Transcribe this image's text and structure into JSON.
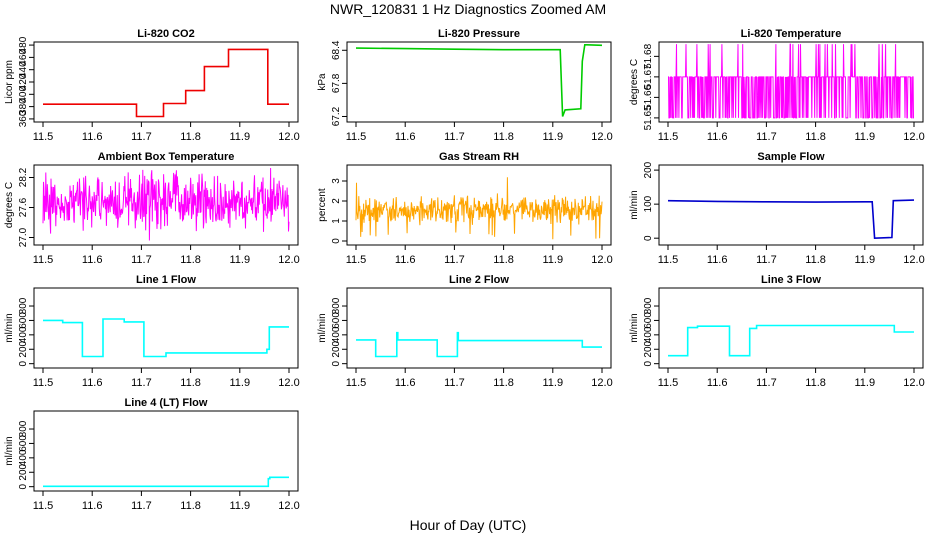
{
  "page": {
    "title": "NWR_120831  1 Hz Diagnostics Zoomed AM",
    "xlabel": "Hour of Day (UTC)"
  },
  "chart_data": [
    {
      "type": "line",
      "title": "Li-820 CO2",
      "ylabel": "Licor ppm",
      "color": "#ee0000",
      "xlim": [
        11.5,
        12.0
      ],
      "ylim": [
        355,
        485
      ],
      "x_ticks": [
        "11.5",
        "11.6",
        "11.7",
        "11.8",
        "11.9",
        "12.0"
      ],
      "y_ticks": [
        360,
        380,
        400,
        420,
        440,
        460,
        480
      ],
      "series": [
        {
          "x": [
            11.5,
            11.69,
            11.69,
            11.745,
            11.745,
            11.79,
            11.79,
            11.828,
            11.828,
            11.877,
            11.877,
            11.957,
            11.957,
            12.0
          ],
          "y": [
            384,
            384,
            364,
            364,
            385,
            385,
            406,
            406,
            445,
            445,
            473,
            473,
            384,
            384
          ]
        }
      ]
    },
    {
      "type": "line",
      "title": "Li-820 Pressure",
      "ylabel": "kPa",
      "color": "#00cc00",
      "xlim": [
        11.5,
        12.0
      ],
      "ylim": [
        67.1,
        68.55
      ],
      "x_ticks": [
        "11.5",
        "11.6",
        "11.7",
        "11.8",
        "11.9",
        "12.0"
      ],
      "y_ticks": [
        67.2,
        67.8,
        68.4
      ],
      "series": [
        {
          "x": [
            11.5,
            11.6,
            11.7,
            11.8,
            11.9,
            11.915,
            11.92,
            11.925,
            11.957,
            11.96,
            11.965,
            11.97,
            12.0
          ],
          "y": [
            68.44,
            68.43,
            68.42,
            68.41,
            68.41,
            68.41,
            67.2,
            67.32,
            67.34,
            68.2,
            68.5,
            68.5,
            68.49
          ]
        }
      ]
    },
    {
      "type": "line",
      "title": "Li-820 Temperature",
      "ylabel": "degrees C",
      "color": "#ff00ff",
      "xlim": [
        11.5,
        12.0
      ],
      "ylim": [
        51.648,
        51.687
      ],
      "x_ticks": [
        "11.5",
        "11.6",
        "11.7",
        "11.8",
        "11.9",
        "12.0"
      ],
      "y_ticks": [
        51.65,
        51.66,
        51.67,
        51.68
      ],
      "series": [
        {
          "x": [
            11.5,
            12.0
          ],
          "y": [
            51.65,
            51.67
          ],
          "note": "dense 1 Hz toggling between 51.65 and 51.67 with spikes to 51.68"
        }
      ]
    },
    {
      "type": "line",
      "title": "Ambient Box Temperature",
      "ylabel": "degrees C",
      "color": "#ff00ff",
      "xlim": [
        11.5,
        12.0
      ],
      "ylim": [
        26.85,
        28.45
      ],
      "x_ticks": [
        "11.5",
        "11.6",
        "11.7",
        "11.8",
        "11.9",
        "12.0"
      ],
      "y_ticks": [
        27.0,
        27.6,
        28.2
      ],
      "series": [
        {
          "x": [
            11.5,
            12.0
          ],
          "y": [
            27.7,
            27.7
          ]
        }
      ]
    },
    {
      "type": "line",
      "title": "Gas Stream RH",
      "ylabel": "percent",
      "color": "#ffa500",
      "xlim": [
        11.5,
        12.0
      ],
      "ylim": [
        -0.2,
        3.8
      ],
      "x_ticks": [
        "11.5",
        "11.6",
        "11.7",
        "11.8",
        "11.9",
        "12.0"
      ],
      "y_ticks": [
        0,
        1,
        2,
        3
      ],
      "series": [
        {
          "x": [
            11.5,
            12.0
          ],
          "y": [
            1.55,
            1.55
          ]
        }
      ]
    },
    {
      "type": "line",
      "title": "Sample Flow",
      "ylabel": "ml/min",
      "color": "#0000cc",
      "xlim": [
        11.5,
        12.0
      ],
      "ylim": [
        -20,
        215
      ],
      "x_ticks": [
        "11.5",
        "11.6",
        "11.7",
        "11.8",
        "11.9",
        "12.0"
      ],
      "y_ticks": [
        0,
        100,
        200
      ],
      "series": [
        {
          "x": [
            11.5,
            11.6,
            11.7,
            11.8,
            11.9,
            11.915,
            11.92,
            11.955,
            11.958,
            12.0
          ],
          "y": [
            110,
            108,
            107,
            106,
            107,
            107,
            0,
            2,
            110,
            112
          ]
        }
      ]
    },
    {
      "type": "line",
      "title": "Line 1 Flow",
      "ylabel": "ml/min",
      "color": "#00ffff",
      "xlim": [
        11.5,
        12.0
      ],
      "ylim": [
        -60,
        1050
      ],
      "x_ticks": [
        "11.5",
        "11.6",
        "11.7",
        "11.8",
        "11.9",
        "12.0"
      ],
      "y_ticks": [
        0,
        200,
        400,
        600,
        800
      ],
      "series": [
        {
          "x": [
            11.5,
            11.54,
            11.54,
            11.58,
            11.58,
            11.622,
            11.622,
            11.665,
            11.665,
            11.705,
            11.705,
            11.75,
            11.75,
            11.955,
            11.955,
            11.96,
            11.96,
            12.0
          ],
          "y": [
            600,
            600,
            570,
            570,
            100,
            100,
            620,
            620,
            580,
            580,
            100,
            100,
            150,
            150,
            200,
            200,
            510,
            510
          ]
        }
      ]
    },
    {
      "type": "line",
      "title": "Line 2 Flow",
      "ylabel": "ml/min",
      "color": "#00ffff",
      "xlim": [
        11.5,
        12.0
      ],
      "ylim": [
        -60,
        1050
      ],
      "x_ticks": [
        "11.5",
        "11.6",
        "11.7",
        "11.8",
        "11.9",
        "12.0"
      ],
      "y_ticks": [
        0,
        200,
        400,
        600,
        800
      ],
      "series": [
        {
          "x": [
            11.5,
            11.54,
            11.54,
            11.583,
            11.583,
            11.585,
            11.585,
            11.665,
            11.665,
            11.706,
            11.706,
            11.708,
            11.708,
            11.96,
            11.96,
            12.0
          ],
          "y": [
            330,
            330,
            100,
            100,
            430,
            430,
            330,
            330,
            100,
            100,
            430,
            430,
            320,
            320,
            230,
            230
          ]
        }
      ]
    },
    {
      "type": "line",
      "title": "Line 3 Flow",
      "ylabel": "ml/min",
      "color": "#00ffff",
      "xlim": [
        11.5,
        12.0
      ],
      "ylim": [
        -60,
        1050
      ],
      "x_ticks": [
        "11.5",
        "11.6",
        "11.7",
        "11.8",
        "11.9",
        "12.0"
      ],
      "y_ticks": [
        0,
        200,
        400,
        600,
        800
      ],
      "series": [
        {
          "x": [
            11.5,
            11.54,
            11.54,
            11.56,
            11.56,
            11.625,
            11.625,
            11.666,
            11.666,
            11.68,
            11.68,
            11.96,
            11.96,
            12.0
          ],
          "y": [
            110,
            110,
            500,
            500,
            520,
            520,
            110,
            110,
            490,
            490,
            530,
            530,
            440,
            440
          ]
        }
      ]
    },
    {
      "type": "line",
      "title": "Line 4 (LT) Flow",
      "ylabel": "ml/min",
      "color": "#00ffff",
      "xlim": [
        11.5,
        12.0
      ],
      "ylim": [
        -60,
        1050
      ],
      "x_ticks": [
        "11.5",
        "11.6",
        "11.7",
        "11.8",
        "11.9",
        "12.0"
      ],
      "y_ticks": [
        0,
        200,
        400,
        600,
        800
      ],
      "series": [
        {
          "x": [
            11.5,
            11.958,
            11.958,
            11.961,
            11.961,
            12.0
          ],
          "y": [
            5,
            5,
            110,
            110,
            130,
            130
          ]
        }
      ]
    }
  ]
}
